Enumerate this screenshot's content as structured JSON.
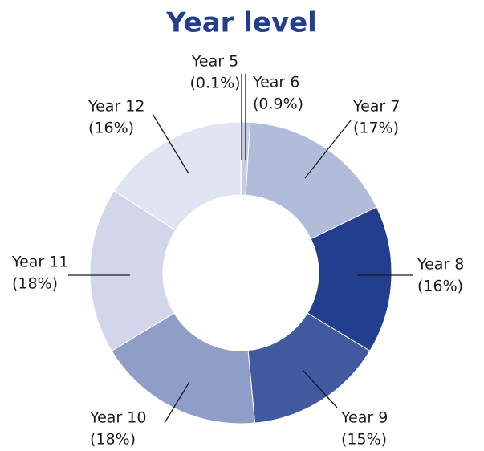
{
  "chart_data": {
    "type": "pie",
    "title": "Year level",
    "categories": [
      "Year 5",
      "Year 6",
      "Year 7",
      "Year 8",
      "Year 9",
      "Year 10",
      "Year 11",
      "Year 12"
    ],
    "values": [
      0.1,
      0.9,
      17,
      16,
      15,
      18,
      18,
      16
    ],
    "value_labels": [
      "(0.1%)",
      "(0.9%)",
      "(17%)",
      "(16%)",
      "(15%)",
      "(18%)",
      "(18%)",
      "(16%)"
    ],
    "colors": [
      "#d3d7eb",
      "#c5cbe4",
      "#b1bbda",
      "#233d8f",
      "#41599f",
      "#8f9dc9",
      "#d3d6ea",
      "#e0e3f2"
    ]
  }
}
